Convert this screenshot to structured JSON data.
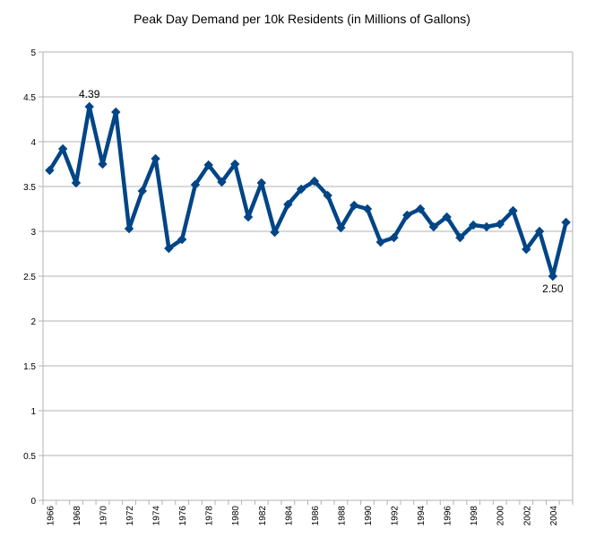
{
  "chart_data": {
    "type": "line",
    "title": "Peak Day Demand per 10k Residents (in Millions of Gallons)",
    "xlabel": "",
    "ylabel": "",
    "ylim": [
      0,
      5
    ],
    "y_ticks": [
      "0",
      "0.5",
      "1",
      "1.5",
      "2",
      "2.5",
      "3",
      "3.5",
      "4",
      "4.5",
      "5"
    ],
    "x_ticks": [
      "1966",
      "1968",
      "1970",
      "1972",
      "1974",
      "1976",
      "1978",
      "1980",
      "1982",
      "1984",
      "1986",
      "1988",
      "1990",
      "1992",
      "1994",
      "1996",
      "1998",
      "2000",
      "2002",
      "2004"
    ],
    "grid": true,
    "legend": "none",
    "line_color": "#004586",
    "x": [
      1966,
      1967,
      1968,
      1969,
      1970,
      1971,
      1972,
      1973,
      1974,
      1975,
      1976,
      1977,
      1978,
      1979,
      1980,
      1981,
      1982,
      1983,
      1984,
      1985,
      1986,
      1987,
      1988,
      1989,
      1990,
      1991,
      1992,
      1993,
      1994,
      1995,
      1996,
      1997,
      1998,
      1999,
      2000,
      2001,
      2002,
      2003,
      2004,
      2005
    ],
    "values": [
      3.68,
      3.92,
      3.54,
      4.39,
      3.75,
      4.33,
      3.03,
      3.45,
      3.81,
      2.81,
      2.91,
      3.52,
      3.74,
      3.55,
      3.75,
      3.16,
      3.54,
      2.99,
      3.3,
      3.47,
      3.56,
      3.4,
      3.04,
      3.29,
      3.25,
      2.88,
      2.93,
      3.18,
      3.25,
      3.05,
      3.16,
      2.93,
      3.07,
      3.05,
      3.08,
      3.23,
      2.8,
      3.0,
      2.5,
      3.1
    ],
    "annotations": [
      {
        "text": "4.39",
        "x": 1969,
        "value": 4.39,
        "place": "above"
      },
      {
        "text": "2.50",
        "x": 2004,
        "value": 2.5,
        "place": "below"
      }
    ]
  }
}
